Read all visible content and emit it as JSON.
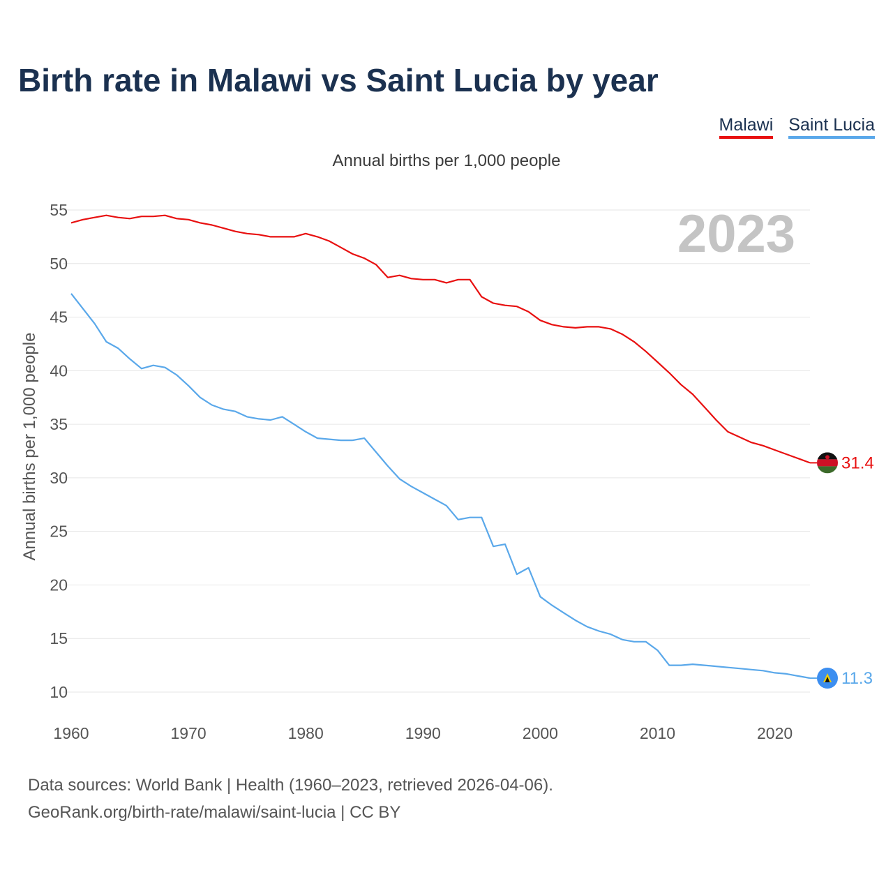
{
  "header": {
    "title": "Birth rate in Malawi vs Saint Lucia by year"
  },
  "legend": {
    "items": [
      {
        "label": "Malawi",
        "color": "#e81010"
      },
      {
        "label": "Saint Lucia",
        "color": "#5aa8ea"
      }
    ]
  },
  "subtitle": "Annual births per 1,000 people",
  "year_overlay": "2023",
  "footer": {
    "source_line": "Data sources: World Bank | Health (1960–2023, retrieved 2026-04-06).",
    "url_line": "GeoRank.org/birth-rate/malawi/saint-lucia | CC BY"
  },
  "chart_data": {
    "type": "line",
    "title": "Birth rate in Malawi vs Saint Lucia by year",
    "subtitle": "Annual births per 1,000 people",
    "xlabel": "",
    "ylabel": "Annual births per 1,000 people",
    "xlim": [
      1960,
      2023
    ],
    "ylim": [
      10,
      55
    ],
    "x_ticks": [
      1960,
      1970,
      1980,
      1990,
      2000,
      2010,
      2020
    ],
    "y_ticks": [
      10,
      15,
      20,
      25,
      30,
      35,
      40,
      45,
      50,
      55
    ],
    "grid": true,
    "legend_position": "top-right",
    "x": [
      1960,
      1961,
      1962,
      1963,
      1964,
      1965,
      1966,
      1967,
      1968,
      1969,
      1970,
      1971,
      1972,
      1973,
      1974,
      1975,
      1976,
      1977,
      1978,
      1979,
      1980,
      1981,
      1982,
      1983,
      1984,
      1985,
      1986,
      1987,
      1988,
      1989,
      1990,
      1991,
      1992,
      1993,
      1994,
      1995,
      1996,
      1997,
      1998,
      1999,
      2000,
      2001,
      2002,
      2003,
      2004,
      2005,
      2006,
      2007,
      2008,
      2009,
      2010,
      2011,
      2012,
      2013,
      2014,
      2015,
      2016,
      2017,
      2018,
      2019,
      2020,
      2021,
      2022,
      2023
    ],
    "series": [
      {
        "name": "Malawi",
        "color": "#e81010",
        "end_label": "31.4",
        "values": [
          53.8,
          54.1,
          54.3,
          54.5,
          54.3,
          54.2,
          54.4,
          54.4,
          54.5,
          54.2,
          54.1,
          53.8,
          53.6,
          53.3,
          53.0,
          52.8,
          52.7,
          52.5,
          52.5,
          52.5,
          52.8,
          52.5,
          52.1,
          51.5,
          50.9,
          50.5,
          49.9,
          48.7,
          48.9,
          48.6,
          48.5,
          48.5,
          48.2,
          48.5,
          48.5,
          46.9,
          46.3,
          46.1,
          46.0,
          45.5,
          44.7,
          44.3,
          44.1,
          44.0,
          44.1,
          44.1,
          43.9,
          43.4,
          42.7,
          41.8,
          40.8,
          39.8,
          38.7,
          37.8,
          36.6,
          35.4,
          34.3,
          33.8,
          33.3,
          33.0,
          32.6,
          32.2,
          31.8,
          31.4
        ]
      },
      {
        "name": "Saint Lucia",
        "color": "#5aa8ea",
        "end_label": "11.3",
        "values": [
          47.2,
          45.8,
          44.4,
          42.7,
          42.1,
          41.1,
          40.2,
          40.5,
          40.3,
          39.6,
          38.6,
          37.5,
          36.8,
          36.4,
          36.2,
          35.7,
          35.5,
          35.4,
          35.7,
          35.0,
          34.3,
          33.7,
          33.6,
          33.5,
          33.5,
          33.7,
          32.4,
          31.1,
          29.9,
          29.2,
          28.6,
          28.0,
          27.4,
          26.1,
          26.3,
          26.3,
          23.6,
          23.8,
          21.0,
          21.6,
          18.9,
          18.1,
          17.4,
          16.7,
          16.1,
          15.7,
          15.4,
          14.9,
          14.7,
          14.7,
          13.9,
          12.5,
          12.5,
          12.6,
          12.5,
          12.4,
          12.3,
          12.2,
          12.1,
          12.0,
          11.8,
          11.7,
          11.5,
          11.3
        ]
      }
    ]
  }
}
